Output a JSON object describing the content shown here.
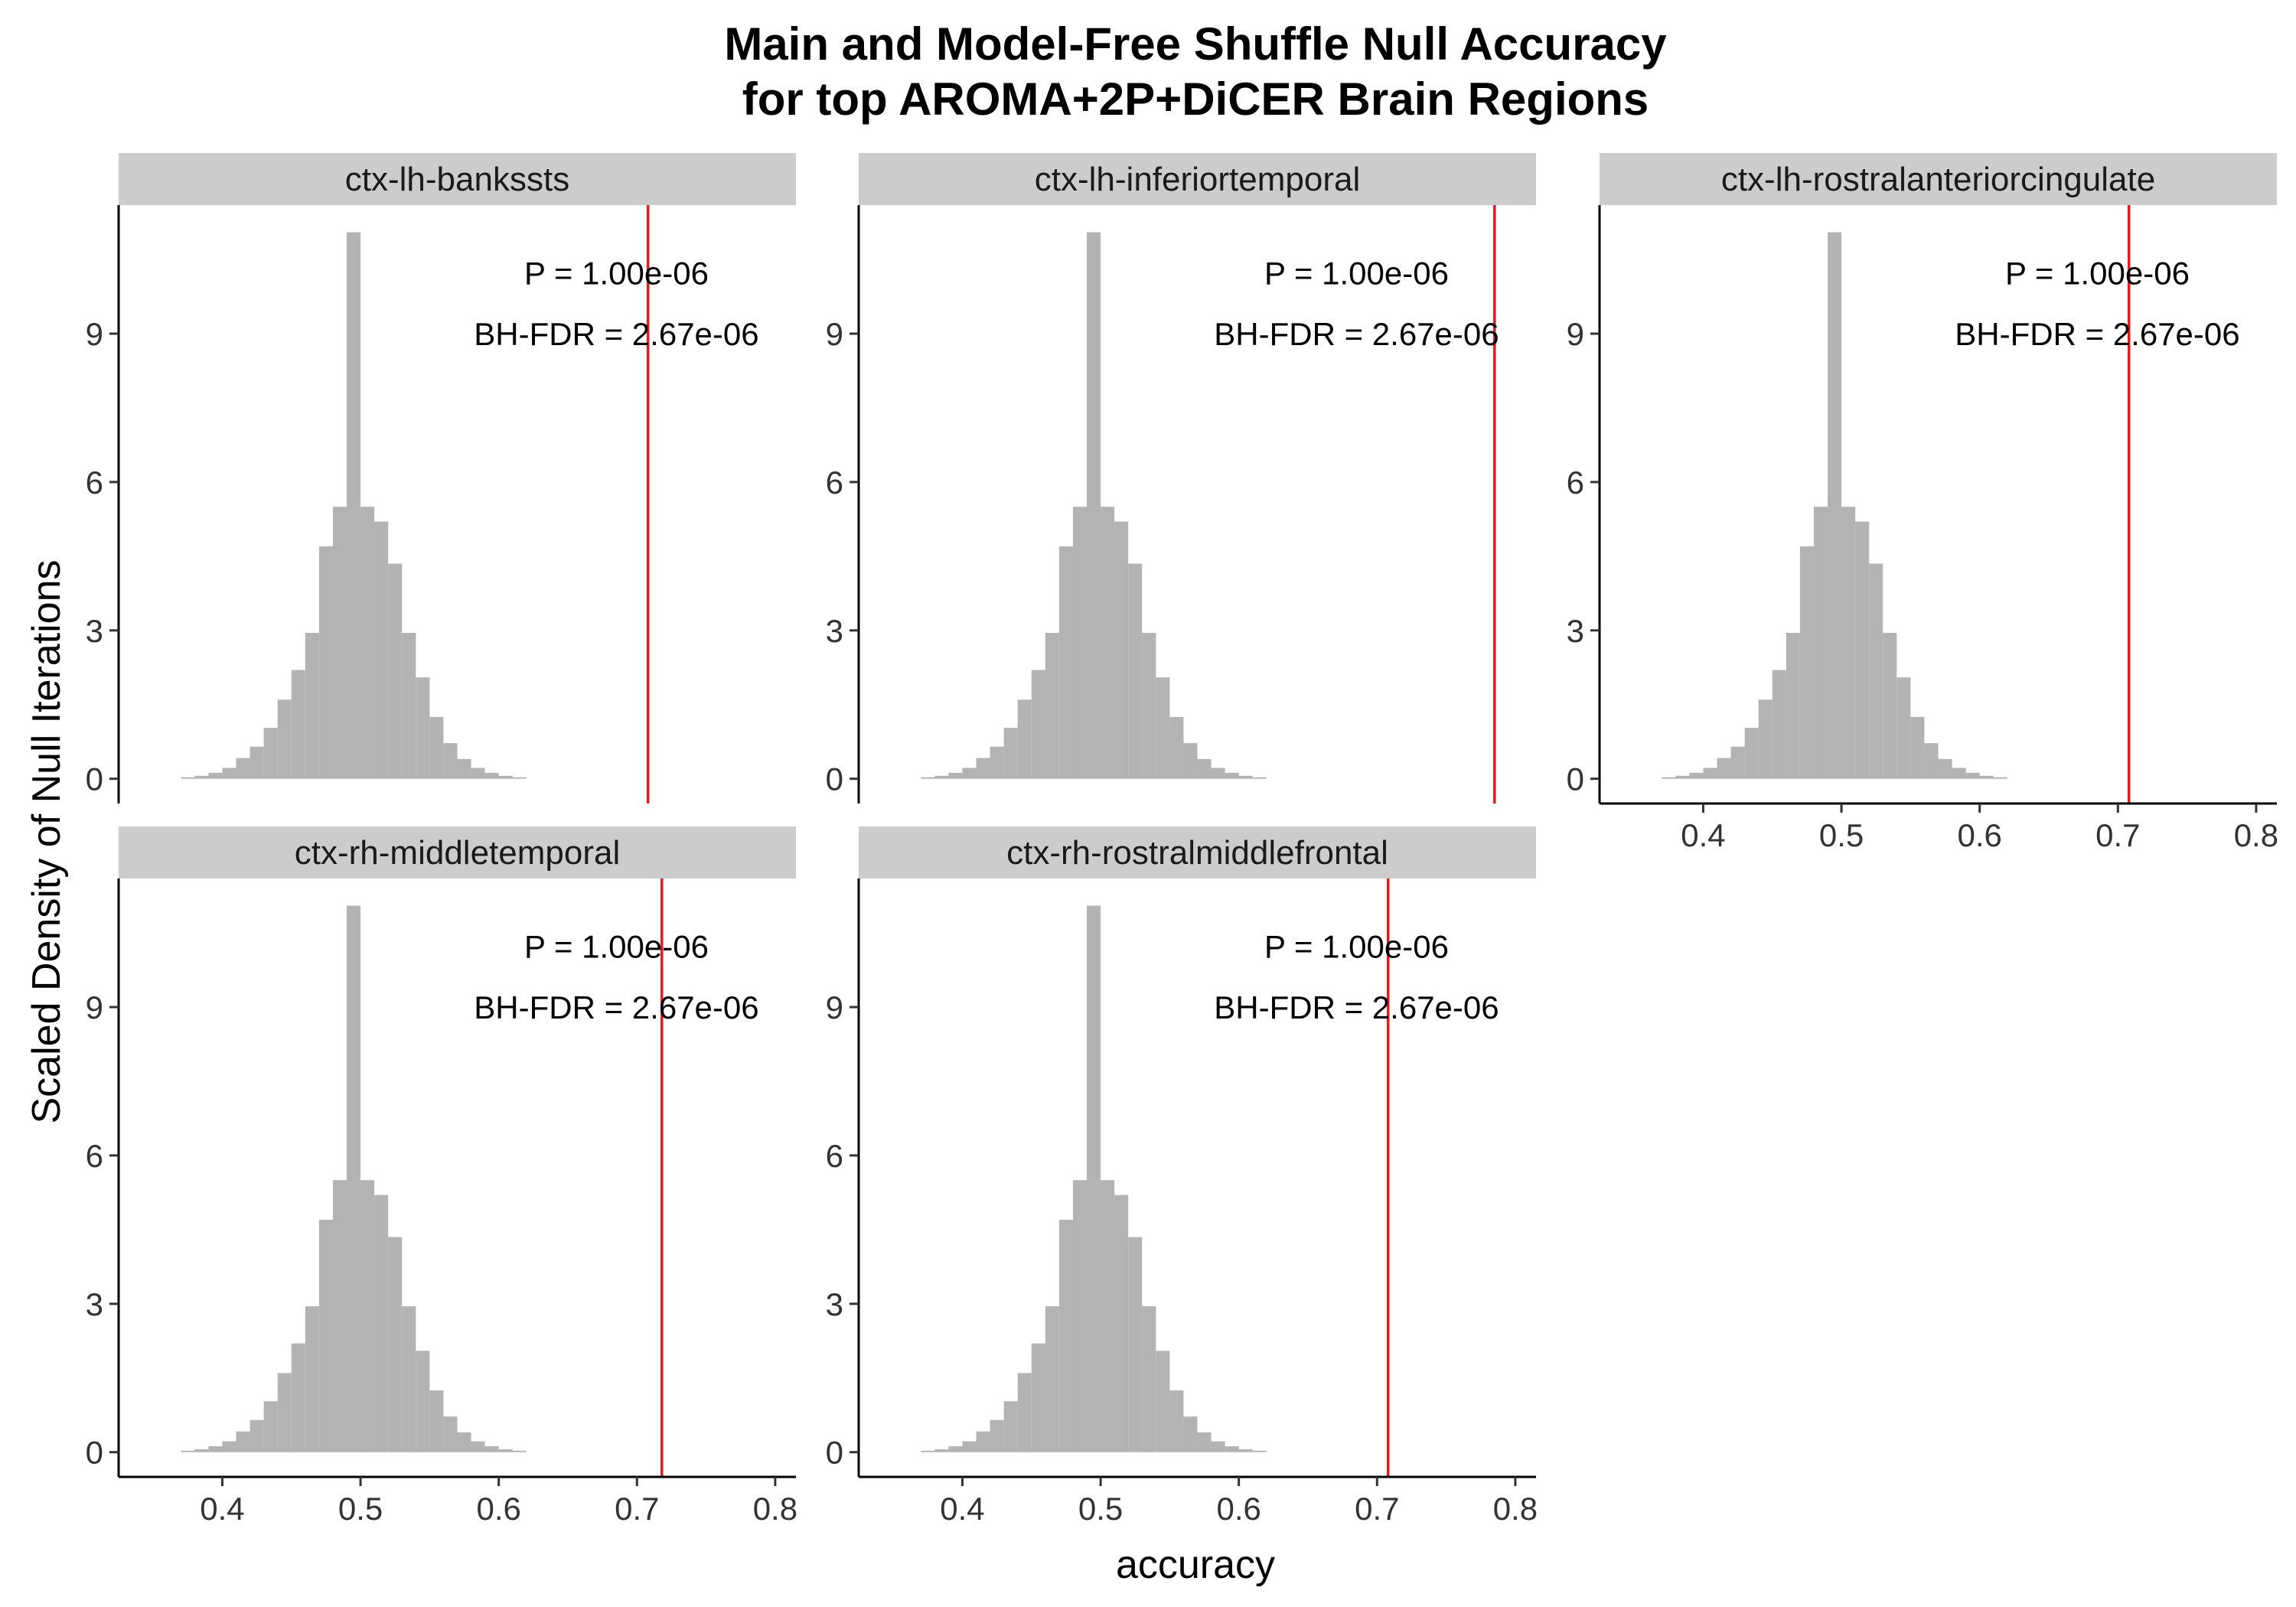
{
  "chart_data": {
    "type": "bar",
    "title_line1": "Main and Model-Free Shuffle Null Accuracy",
    "title_line2": "for top AROMA+2P+DiCER Brain Regions",
    "xlabel": "accuracy",
    "ylabel": "Scaled Density of Null Iterations",
    "xlim": [
      0.325,
      0.815
    ],
    "ylim": [
      -0.5,
      11.6
    ],
    "x_ticks": [
      0.4,
      0.5,
      0.6,
      0.7,
      0.8
    ],
    "x_tick_labels": [
      "0.4",
      "0.5",
      "0.6",
      "0.7",
      "0.8"
    ],
    "y_ticks": [
      0,
      3,
      6,
      9
    ],
    "y_tick_labels": [
      "0",
      "3",
      "6",
      "9"
    ],
    "grid": false,
    "legend": "none",
    "bar_color": "#b3b3b3",
    "line_color": "#e41a1c",
    "bin_width": 0.01,
    "bin_centers": [
      0.375,
      0.385,
      0.395,
      0.405,
      0.415,
      0.425,
      0.435,
      0.445,
      0.455,
      0.465,
      0.475,
      0.485,
      0.495,
      0.505,
      0.515,
      0.525,
      0.535,
      0.545,
      0.555,
      0.565,
      0.575,
      0.585,
      0.595,
      0.605,
      0.615
    ],
    "panels": [
      {
        "strip": "ctx-lh-bankssts",
        "observed_accuracy": 0.708,
        "p_label": "P = 1.00e-06",
        "fdr_label": "BH-FDR = 2.67e-06",
        "values": [
          0.03,
          0.06,
          0.12,
          0.22,
          0.42,
          0.65,
          1.03,
          1.6,
          2.2,
          2.95,
          4.7,
          5.5,
          11.05,
          5.5,
          5.2,
          4.35,
          2.95,
          2.05,
          1.25,
          0.72,
          0.4,
          0.22,
          0.12,
          0.06,
          0.03
        ]
      },
      {
        "strip": "ctx-lh-inferiortemporal",
        "observed_accuracy": 0.785,
        "p_label": "P = 1.00e-06",
        "fdr_label": "BH-FDR = 2.67e-06",
        "values": [
          0.03,
          0.06,
          0.12,
          0.22,
          0.42,
          0.65,
          1.03,
          1.6,
          2.2,
          2.95,
          4.7,
          5.5,
          11.05,
          5.5,
          5.2,
          4.35,
          2.95,
          2.05,
          1.25,
          0.72,
          0.4,
          0.22,
          0.12,
          0.06,
          0.03
        ]
      },
      {
        "strip": "ctx-lh-rostralanteriorcingulate",
        "observed_accuracy": 0.708,
        "p_label": "P = 1.00e-06",
        "fdr_label": "BH-FDR = 2.67e-06",
        "values": [
          0.03,
          0.06,
          0.12,
          0.22,
          0.42,
          0.65,
          1.03,
          1.6,
          2.2,
          2.95,
          4.7,
          5.5,
          11.05,
          5.5,
          5.2,
          4.35,
          2.95,
          2.05,
          1.25,
          0.72,
          0.4,
          0.22,
          0.12,
          0.06,
          0.03
        ]
      },
      {
        "strip": "ctx-rh-middletemporal",
        "observed_accuracy": 0.718,
        "p_label": "P = 1.00e-06",
        "fdr_label": "BH-FDR = 2.67e-06",
        "values": [
          0.03,
          0.06,
          0.12,
          0.22,
          0.42,
          0.65,
          1.03,
          1.6,
          2.2,
          2.95,
          4.7,
          5.5,
          11.05,
          5.5,
          5.2,
          4.35,
          2.95,
          2.05,
          1.25,
          0.72,
          0.4,
          0.22,
          0.12,
          0.06,
          0.03
        ]
      },
      {
        "strip": "ctx-rh-rostralmiddlefrontal",
        "observed_accuracy": 0.708,
        "p_label": "P = 1.00e-06",
        "fdr_label": "BH-FDR = 2.67e-06",
        "values": [
          0.03,
          0.06,
          0.12,
          0.22,
          0.42,
          0.65,
          1.03,
          1.6,
          2.2,
          2.95,
          4.7,
          5.5,
          11.05,
          5.5,
          5.2,
          4.35,
          2.95,
          2.05,
          1.25,
          0.72,
          0.4,
          0.22,
          0.12,
          0.06,
          0.03
        ]
      }
    ]
  }
}
